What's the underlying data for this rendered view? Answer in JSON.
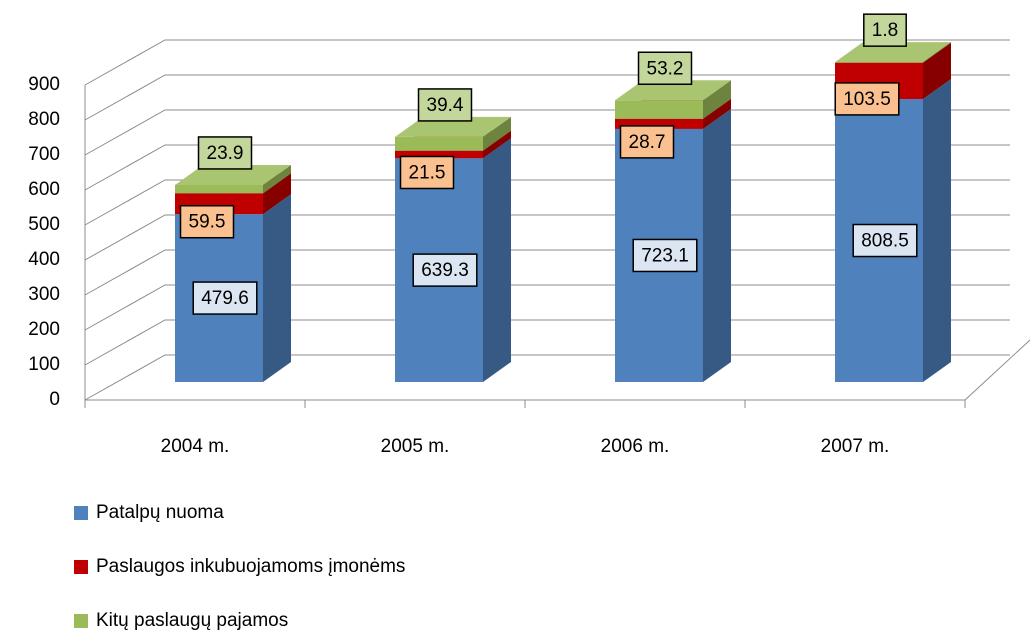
{
  "chart_data": {
    "type": "bar3d_stacked",
    "categories": [
      "2004 m.",
      "2005 m.",
      "2006 m.",
      "2007 m."
    ],
    "series": [
      {
        "name": "Patalpų nuoma",
        "color": "#4f81bd",
        "values": [
          479.6,
          639.3,
          723.1,
          808.5
        ]
      },
      {
        "name": "Paslaugos inkubuojamoms įmonėms",
        "color": "#c00000",
        "values": [
          59.5,
          21.5,
          28.7,
          103.5
        ]
      },
      {
        "name": "Kitų paslaugų pajamos",
        "color": "#9bbb59",
        "values": [
          23.9,
          39.4,
          53.2,
          1.8
        ]
      }
    ],
    "ylim": [
      0,
      900
    ],
    "yticks": [
      0,
      100,
      200,
      300,
      400,
      500,
      600,
      700,
      800,
      900
    ],
    "grid": true,
    "legend": "bottom-left"
  }
}
